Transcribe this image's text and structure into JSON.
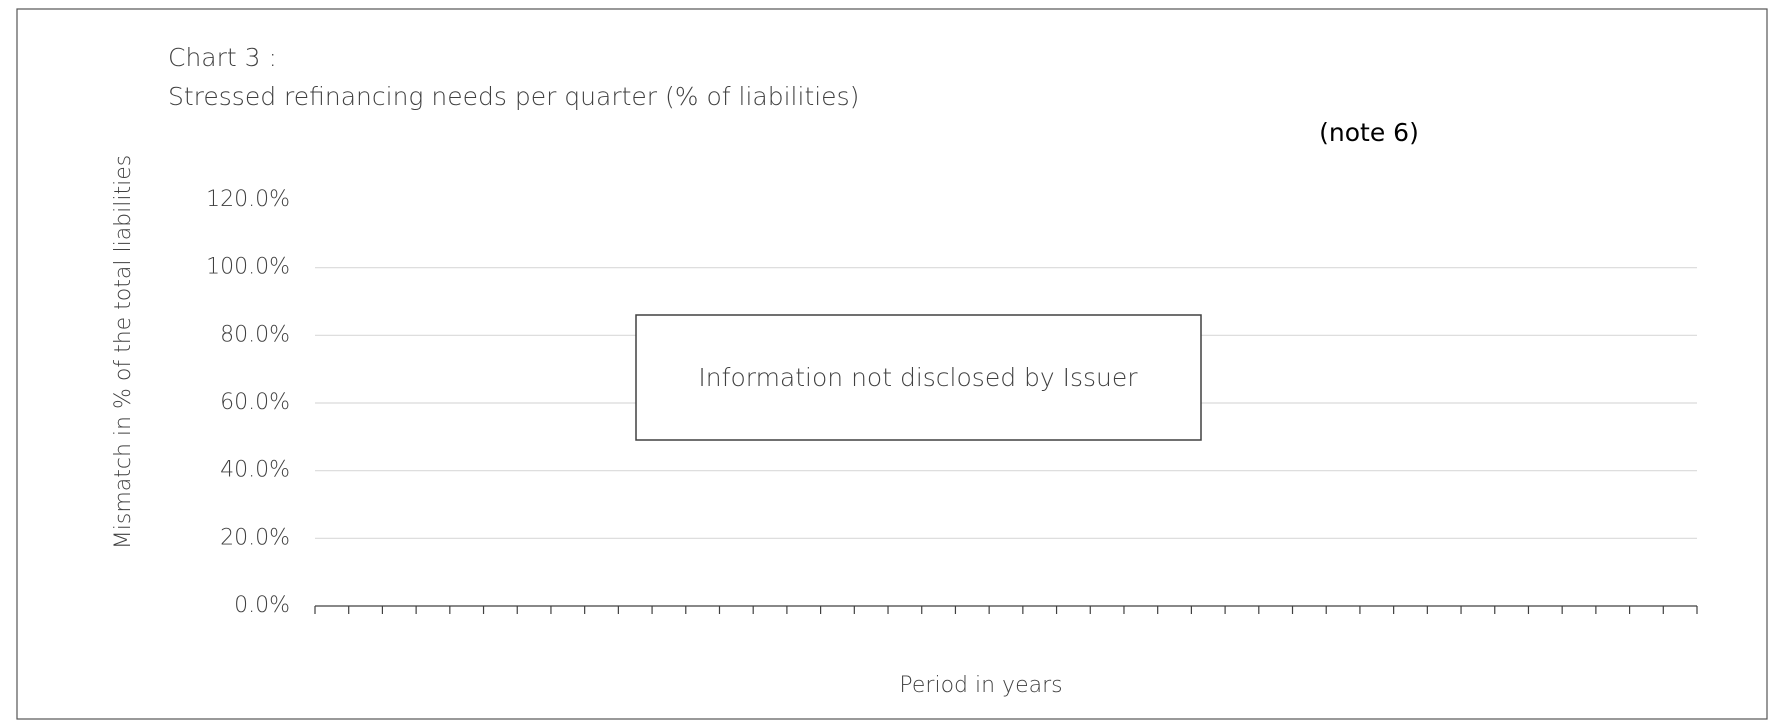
{
  "chart_data": {
    "type": "bar",
    "title": "Chart 3 :",
    "subtitle": "Stressed refinancing needs per quarter  (% of liabilities)",
    "note": "(note 6)",
    "annotation": "Information not disclosed by Issuer",
    "ylabel": "Mismatch in % of the total liabilities",
    "xlabel": "Period in years",
    "categories": [
      null,
      null,
      null,
      null,
      null,
      null,
      null,
      null,
      null,
      null,
      null,
      null,
      null,
      null,
      null,
      null,
      null,
      null,
      null,
      null,
      null,
      null,
      null,
      null,
      null,
      null,
      null,
      null,
      null,
      null,
      null,
      null,
      null,
      null,
      null,
      null,
      null,
      null,
      null,
      null,
      null
    ],
    "values": [
      null,
      null,
      null,
      null,
      null,
      null,
      null,
      null,
      null,
      null,
      null,
      null,
      null,
      null,
      null,
      null,
      null,
      null,
      null,
      null,
      null,
      null,
      null,
      null,
      null,
      null,
      null,
      null,
      null,
      null,
      null,
      null,
      null,
      null,
      null,
      null,
      null,
      null,
      null,
      null,
      null
    ],
    "color": "#4472c4",
    "ylim": [
      0,
      120
    ],
    "yticks": [
      {
        "value": 0,
        "label": "0.0%"
      },
      {
        "value": 20,
        "label": "20.0%"
      },
      {
        "value": 40,
        "label": "40.0%"
      },
      {
        "value": 60,
        "label": "60.0%"
      },
      {
        "value": 80,
        "label": "80.0%"
      },
      {
        "value": 100,
        "label": "100.0%"
      },
      {
        "value": 120,
        "label": "120.0%"
      }
    ],
    "grid": true
  }
}
